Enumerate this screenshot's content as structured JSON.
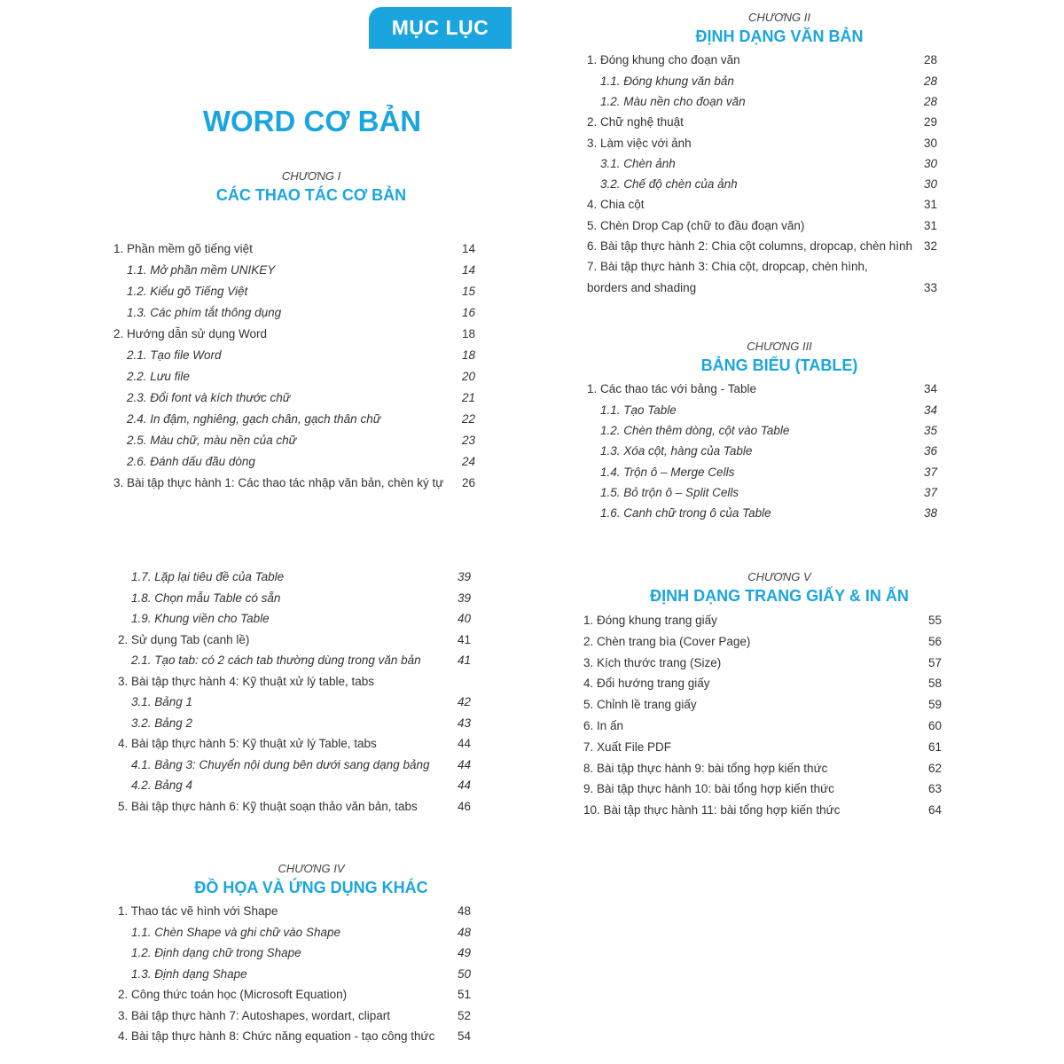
{
  "header": {
    "tab": "MỤC LỤC",
    "title": "WORD CƠ BẢN"
  },
  "blocks": [
    {
      "chapter": "CHƯƠNG I",
      "title": "CÁC THAO TÁC CƠ BẢN",
      "items": [
        {
          "text": "1. Phần mềm gõ tiếng việt",
          "page": 14,
          "sub": [
            {
              "text": "1.1. Mở phần mềm UNIKEY",
              "page": 14
            },
            {
              "text": "1.2. Kiểu gõ Tiếng Việt",
              "page": 15
            },
            {
              "text": "1.3. Các phím tắt thông dụng",
              "page": 16
            }
          ]
        },
        {
          "text": "2. Hướng dẫn sử dụng Word",
          "page": 18,
          "sub": [
            {
              "text": "2.1. Tạo file Word",
              "page": 18
            },
            {
              "text": "2.2. Lưu file",
              "page": 20
            },
            {
              "text": "2.3. Đổi font và kích thước chữ",
              "page": 21
            },
            {
              "text": "2.4. In đậm, nghiêng, gạch chân, gạch thân chữ",
              "page": 22
            },
            {
              "text": "2.5. Màu chữ, màu nền của chữ",
              "page": 23
            },
            {
              "text": "2.6. Đánh dấu đầu dòng",
              "page": 24
            }
          ]
        },
        {
          "text": "3. Bài tập thực hành 1: Các thao tác nhập văn bản, chèn ký tự",
          "page": 26
        }
      ]
    },
    {
      "chapter": "CHƯƠNG II",
      "title": "ĐỊNH DẠNG VĂN BẢN",
      "items": [
        {
          "text": "1. Đóng khung cho đoạn văn",
          "page": 28,
          "sub": [
            {
              "text": "1.1. Đóng khung văn bản",
              "page": 28
            },
            {
              "text": "1.2. Màu nền cho đoạn văn",
              "page": 28
            }
          ]
        },
        {
          "text": "2. Chữ nghệ thuật",
          "page": 29
        },
        {
          "text": "3. Làm việc với ảnh",
          "page": 30,
          "sub": [
            {
              "text": "3.1. Chèn ảnh",
              "page": 30
            },
            {
              "text": "3.2. Chế độ chèn của ảnh",
              "page": 30
            }
          ]
        },
        {
          "text": "4. Chia cột",
          "page": 31
        },
        {
          "text": "5. Chèn Drop Cap (chữ to đầu đoạn văn)",
          "page": 31
        },
        {
          "text": "6. Bài tập thực hành 2: Chia cột columns, dropcap, chèn hình",
          "page": 32
        },
        {
          "text": "7. Bài tập thực hành 3: Chia cột, dropcap, chèn hình,\nborders and shading",
          "page": 33
        }
      ]
    },
    {
      "chapter": "CHƯƠNG III",
      "title": "BẢNG BIỂU (TABLE)",
      "items": [
        {
          "text": "1. Các thao tác với bảng - Table",
          "page": 34,
          "sub": [
            {
              "text": "1.1. Tạo Table",
              "page": 34
            },
            {
              "text": "1.2. Chèn thêm dòng, cột vào Table",
              "page": 35
            },
            {
              "text": "1.3. Xóa cột, hàng của Table",
              "page": 36
            },
            {
              "text": "1.4. Trộn ô – Merge Cells",
              "page": 37
            },
            {
              "text": "1.5. Bỏ trộn ô – Split Cells",
              "page": 37
            },
            {
              "text": "1.6. Canh chữ trong ô của Table",
              "page": 38
            }
          ]
        }
      ]
    },
    {
      "lead": [
        {
          "text": "1.7. Lặp lại tiêu đề của Table",
          "page": 39
        },
        {
          "text": "1.8. Chọn mẫu Table có sẵn",
          "page": 39
        },
        {
          "text": "1.9. Khung viền cho Table",
          "page": 40
        }
      ],
      "items": [
        {
          "text": "2. Sử dụng Tab (canh lề)",
          "page": 41,
          "sub": [
            {
              "text": "2.1. Tạo tab: có 2 cách tab thường dùng trong văn bản",
              "page": 41
            }
          ]
        },
        {
          "text": "3. Bài tập thực hành 4: Kỹ thuật xử lý table, tabs",
          "page": null,
          "sub": [
            {
              "text": "3.1. Bảng 1",
              "page": 42
            },
            {
              "text": "3.2. Bảng 2",
              "page": 43
            }
          ]
        },
        {
          "text": "4. Bài tập thực hành 5: Kỹ thuật xử lý Table, tabs",
          "page": 44,
          "sub": [
            {
              "text": "4.1. Bảng 3: Chuyển nội dung bên dưới sang dạng bảng",
              "page": 44
            },
            {
              "text": "4.2. Bảng 4",
              "page": 44
            }
          ]
        },
        {
          "text": "5. Bài tập thực hành 6: Kỹ thuật soạn thảo văn bản, tabs",
          "page": 46
        }
      ]
    },
    {
      "chapter": "CHƯƠNG V",
      "title": "ĐỊNH DẠNG TRANG GIẤY & IN ẤN",
      "items": [
        {
          "text": "1. Đóng khung trang giấy",
          "page": 55
        },
        {
          "text": "2. Chèn trang bìa (Cover Page)",
          "page": 56
        },
        {
          "text": "3. Kích thước trang (Size)",
          "page": 57
        },
        {
          "text": "4. Đổi hướng trang giấy",
          "page": 58
        },
        {
          "text": "5. Chỉnh lề trang giấy",
          "page": 59
        },
        {
          "text": "6. In ấn",
          "page": 60
        },
        {
          "text": "7. Xuất File PDF",
          "page": 61
        },
        {
          "text": "8. Bài tập thực hành 9: bài tổng hợp kiến thức",
          "page": 62
        },
        {
          "text": "9. Bài tập thực hành 10: bài tổng hợp kiến thức",
          "page": 63
        },
        {
          "text": "10. Bài tập thực hành 11: bài tổng hợp kiến thức",
          "page": 64
        }
      ]
    },
    {
      "chapter": "CHƯƠNG IV",
      "title": "ĐỒ HỌA VÀ ỨNG DỤNG KHÁC",
      "items": [
        {
          "text": "1. Thao tác vẽ hình với Shape",
          "page": 48,
          "sub": [
            {
              "text": "1.1. Chèn Shape và ghi chữ vào Shape",
              "page": 48
            },
            {
              "text": "1.2. Định dạng chữ trong Shape",
              "page": 49
            },
            {
              "text": "1.3. Định dạng Shape",
              "page": 50
            }
          ]
        },
        {
          "text": "2. Công thức toán học (Microsoft Equation)",
          "page": 51
        },
        {
          "text": "3. Bài tập thực hành 7: Autoshapes, wordart, clipart",
          "page": 52
        },
        {
          "text": "4. Bài tập thực hành 8: Chức năng equation - tạo công thức",
          "page": 54
        }
      ]
    }
  ]
}
